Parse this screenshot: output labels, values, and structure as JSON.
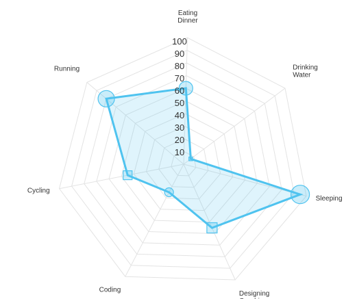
{
  "chart_data": {
    "type": "radar",
    "title": "",
    "axes": [
      [
        "Eating",
        "Dinner"
      ],
      [
        "Drinking",
        "Water"
      ],
      [
        "Sleeping"
      ],
      [
        "Designing",
        "Graphics"
      ],
      [
        "Coding"
      ],
      [
        "Cycling"
      ],
      [
        "Running"
      ]
    ],
    "ticks": [
      "10",
      "20",
      "30",
      "40",
      "50",
      "60",
      "70",
      "80",
      "90",
      "100"
    ],
    "range": [
      0,
      100
    ],
    "series": [
      {
        "values": [
          60,
          7,
          95,
          55,
          25,
          45,
          80
        ],
        "markers": [
          "circle",
          "square",
          "circle",
          "square",
          "circle",
          "square",
          "circle"
        ]
      }
    ],
    "grid": true,
    "legend": "none",
    "colors": {
      "line": "#4fc3ef",
      "fill": "#4fc3ef",
      "grid": "#e3e3e3",
      "text": "#333333"
    }
  }
}
